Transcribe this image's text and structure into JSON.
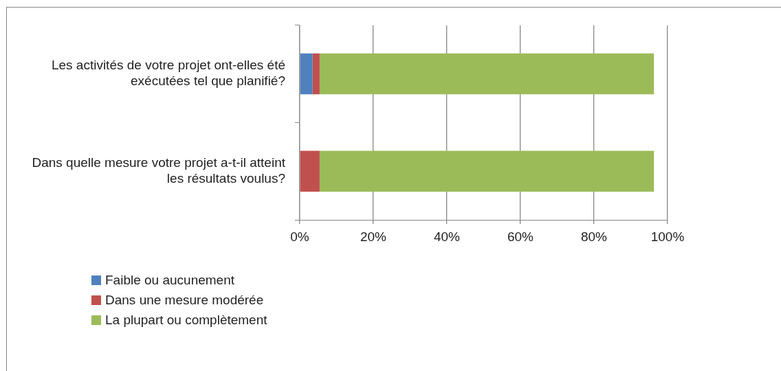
{
  "chart_data": {
    "type": "bar",
    "orientation": "horizontal",
    "stacked": true,
    "categories": [
      "Les activités de votre projet ont-elles été exécutées tel que planifié?",
      "Dans quelle mesure votre projet a-t-il atteint les résultats voulus?"
    ],
    "series": [
      {
        "name": "Faible ou aucunement",
        "color": "#4f81bd",
        "values": [
          3.5,
          0
        ]
      },
      {
        "name": "Dans une mesure modérée",
        "color": "#c0504d",
        "values": [
          1.9,
          5.4
        ]
      },
      {
        "name": "La plupart ou complètement",
        "color": "#9bbb59",
        "values": [
          90.9,
          90.9
        ]
      }
    ],
    "xlim": [
      0,
      100
    ],
    "xticks": [
      {
        "value": 0,
        "label": "0%"
      },
      {
        "value": 20,
        "label": "20%"
      },
      {
        "value": 40,
        "label": "40%"
      },
      {
        "value": 60,
        "label": "60%"
      },
      {
        "value": 80,
        "label": "80%"
      },
      {
        "value": 100,
        "label": "100%"
      }
    ],
    "grid": "x",
    "legend": "bottom left"
  }
}
